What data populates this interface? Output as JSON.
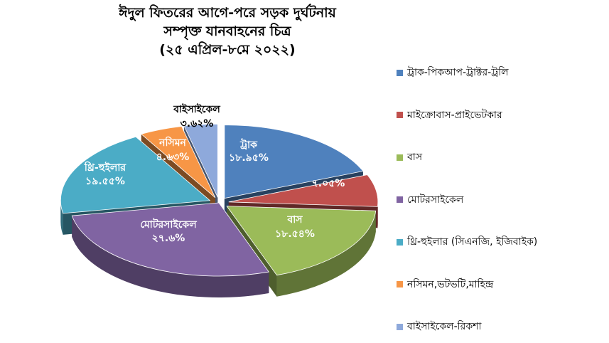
{
  "title_lines": [
    "ঈদুল ফিতরের আগে-পরে সড়ক দুর্ঘটনায়",
    "সম্পৃক্ত যানবাহনের চিত্র",
    "(২৫ এপ্রিল-৮মে ২০২২)"
  ],
  "chart_data": {
    "type": "pie",
    "title": "ঈদুল ফিতরের আগে-পরে সড়ক দুর্ঘটনায় সম্পৃক্ত যানবাহনের চিত্র (২৫ এপ্রিল-৮মে ২০২২)",
    "legend_position": "right",
    "slices": [
      {
        "legend": "ট্রাক-পিকআপ-ট্রাক্টর-ট্রলি",
        "label": "ট্রাক",
        "value_label": "১৮.৯৫%",
        "value": 18.95,
        "color": "#4F81BD"
      },
      {
        "legend": "মাইক্রোবাস-প্রাইভেটকার",
        "label": "",
        "value_label": "৭.০৫%",
        "value": 7.05,
        "color": "#C0504D"
      },
      {
        "legend": "বাস",
        "label": "বাস",
        "value_label": "১৮.৫৪%",
        "value": 18.54,
        "color": "#9BBB59"
      },
      {
        "legend": "মোটরসাইকেল",
        "label": "মোটরসাইকেল",
        "value_label": "২৭.৬%",
        "value": 27.6,
        "color": "#8064A2"
      },
      {
        "legend": "থ্রি-হুইলার (সিএনজি, ইজিবাইক)",
        "label": "থ্রি-হুইলার",
        "value_label": "১৯.৫৫%",
        "value": 19.55,
        "color": "#4BACC6"
      },
      {
        "legend": "নসিমন,ভটভটি,মাহিন্দ্র",
        "label": "নসিমন",
        "value_label": "৪.৬৩%",
        "value": 4.63,
        "color": "#F79646"
      },
      {
        "legend": "বাইসাইকেল-রিকশা",
        "label": "বাইসাইকেল",
        "value_label": "৩.৬২%",
        "value": 3.62,
        "color": "#8EA9DB"
      }
    ]
  }
}
